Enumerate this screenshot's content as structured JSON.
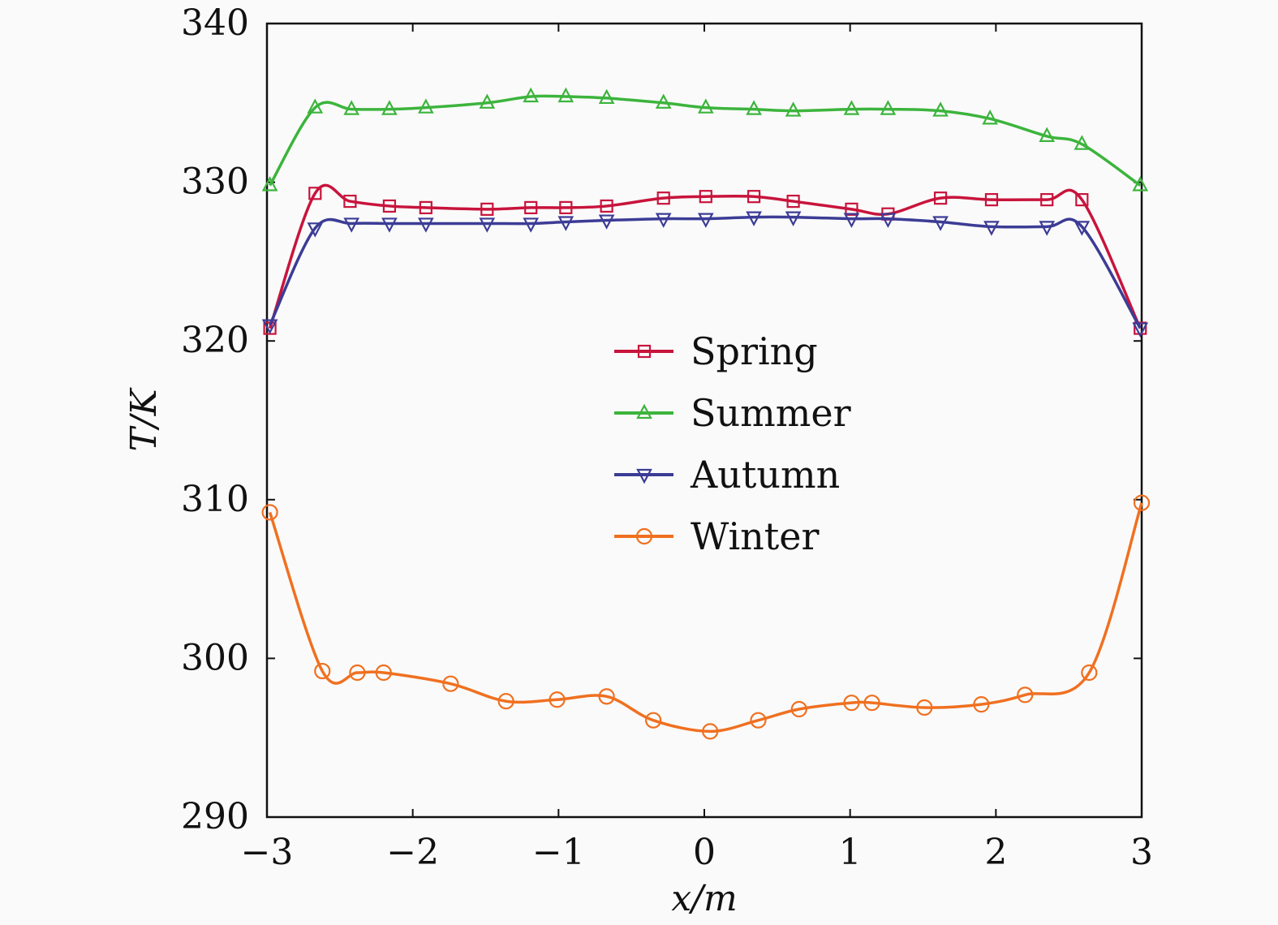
{
  "chart_data": {
    "type": "line",
    "title": "",
    "xlabel": "x/m",
    "ylabel": "T/K",
    "xlim": [
      -3,
      3
    ],
    "ylim": [
      290,
      340
    ],
    "xticks": [
      -3,
      -2,
      -1,
      0,
      1,
      2,
      3
    ],
    "xtick_labels": [
      "−3",
      "−2",
      "−1",
      "0",
      "1",
      "2",
      "3"
    ],
    "yticks": [
      290,
      300,
      310,
      320,
      330,
      340
    ],
    "ytick_labels": [
      "290",
      "300",
      "310",
      "320",
      "330",
      "340"
    ],
    "grid": false,
    "legend_position": "center",
    "series": [
      {
        "name": "Spring",
        "color": "#c8143c",
        "marker": "square",
        "x": [
          -2.98,
          -2.67,
          -2.43,
          -2.16,
          -1.91,
          -1.49,
          -1.19,
          -0.95,
          -0.67,
          -0.28,
          0.01,
          0.34,
          0.61,
          1.01,
          1.26,
          1.62,
          1.97,
          2.35,
          2.59,
          2.99
        ],
        "y": [
          320.8,
          329.3,
          328.8,
          328.5,
          328.4,
          328.3,
          328.4,
          328.4,
          328.5,
          329.0,
          329.1,
          329.1,
          328.8,
          328.3,
          328.0,
          329.0,
          328.9,
          328.9,
          328.9,
          320.8
        ]
      },
      {
        "name": "Summer",
        "color": "#3cb43c",
        "marker": "triangle-up",
        "x": [
          -2.98,
          -2.67,
          -2.42,
          -2.16,
          -1.91,
          -1.49,
          -1.19,
          -0.95,
          -0.67,
          -0.28,
          0.01,
          0.34,
          0.61,
          1.01,
          1.26,
          1.62,
          1.96,
          2.35,
          2.59,
          2.99
        ],
        "y": [
          329.8,
          334.7,
          334.6,
          334.6,
          334.7,
          335.0,
          335.4,
          335.4,
          335.3,
          335.0,
          334.7,
          334.6,
          334.5,
          334.6,
          334.6,
          334.5,
          334.0,
          332.9,
          332.4,
          329.8
        ]
      },
      {
        "name": "Autumn",
        "color": "#3c3c96",
        "marker": "triangle-down",
        "x": [
          -2.98,
          -2.67,
          -2.42,
          -2.16,
          -1.91,
          -1.49,
          -1.19,
          -0.95,
          -0.67,
          -0.28,
          0.01,
          0.34,
          0.61,
          1.01,
          1.26,
          1.62,
          1.97,
          2.35,
          2.59,
          2.99
        ],
        "y": [
          321.0,
          327.1,
          327.4,
          327.4,
          327.4,
          327.4,
          327.4,
          327.5,
          327.6,
          327.7,
          327.7,
          327.8,
          327.8,
          327.7,
          327.7,
          327.5,
          327.2,
          327.2,
          327.2,
          320.8
        ]
      },
      {
        "name": "Winter",
        "color": "#f07020",
        "marker": "circle",
        "x": [
          -2.98,
          -2.62,
          -2.38,
          -2.2,
          -1.74,
          -1.36,
          -1.01,
          -0.67,
          -0.35,
          0.04,
          0.37,
          0.65,
          1.01,
          1.15,
          1.51,
          1.9,
          2.2,
          2.64,
          3.0
        ],
        "y": [
          309.2,
          299.2,
          299.1,
          299.1,
          298.4,
          297.3,
          297.4,
          297.6,
          296.1,
          295.4,
          296.1,
          296.8,
          297.2,
          297.2,
          296.9,
          297.1,
          297.7,
          299.1,
          309.8
        ]
      }
    ]
  }
}
